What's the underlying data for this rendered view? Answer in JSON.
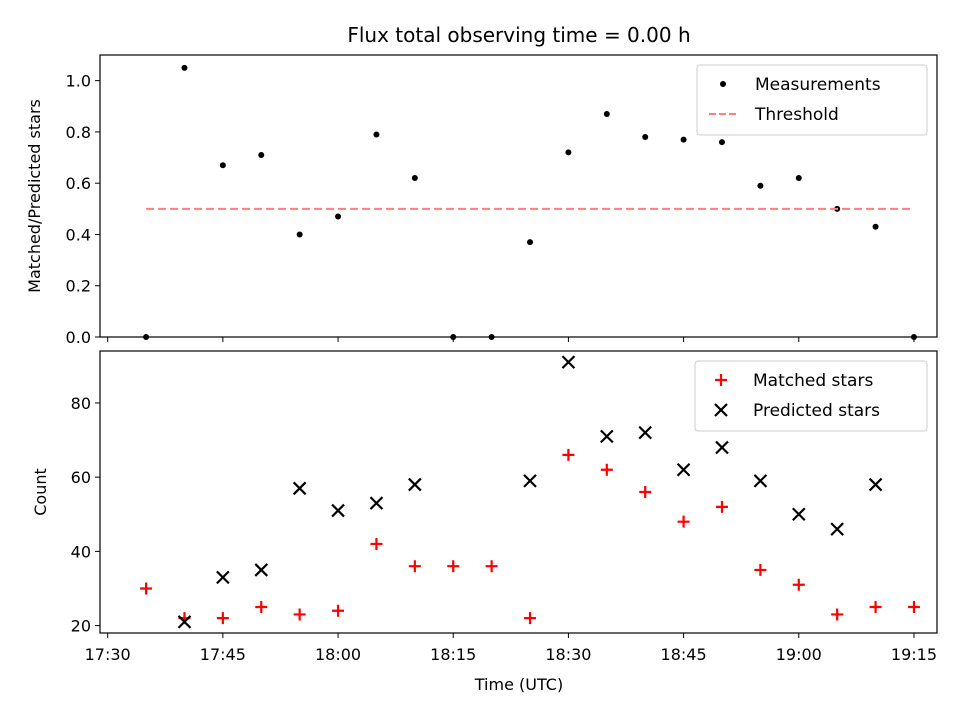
{
  "chart_data": [
    {
      "type": "scatter",
      "title": "Flux total observing time = 0.00 h",
      "xlabel": "",
      "ylabel": "Matched/Predicted stars",
      "ylim": [
        0,
        1.1
      ],
      "yticks": [
        "0.0",
        "0.2",
        "0.4",
        "0.6",
        "0.8",
        "1.0"
      ],
      "ytick_values": [
        0,
        0.2,
        0.4,
        0.6,
        0.8,
        1.0
      ],
      "legend_position": "top-right",
      "series": [
        {
          "name": "Measurements",
          "marker": "dot",
          "color": "#000000",
          "x": [
            "17:35",
            "17:40",
            "17:45",
            "17:50",
            "17:55",
            "18:00",
            "18:05",
            "18:10",
            "18:15",
            "18:20",
            "18:25",
            "18:30",
            "18:35",
            "18:40",
            "18:45",
            "18:50",
            "18:55",
            "19:00",
            "19:05",
            "19:10",
            "19:15"
          ],
          "values": [
            0.0,
            1.05,
            0.67,
            0.71,
            0.4,
            0.47,
            0.79,
            0.62,
            0.0,
            0.0,
            0.37,
            0.72,
            0.87,
            0.78,
            0.77,
            0.76,
            0.59,
            0.62,
            0.5,
            0.43,
            0.0
          ]
        },
        {
          "name": "Threshold",
          "marker": "dashed-line",
          "color": "#ff7f7f",
          "x": [
            "17:35",
            "19:15"
          ],
          "values": [
            0.5,
            0.5
          ]
        }
      ]
    },
    {
      "type": "scatter",
      "title": "",
      "xlabel": "Time (UTC)",
      "ylabel": "Count",
      "ylim": [
        18,
        94
      ],
      "yticks": [
        "20",
        "40",
        "60",
        "80"
      ],
      "ytick_values": [
        20,
        40,
        60,
        80
      ],
      "legend_position": "top-right",
      "series": [
        {
          "name": "Matched stars",
          "marker": "plus",
          "color": "#ff0000",
          "x": [
            "17:35",
            "17:40",
            "17:45",
            "17:50",
            "17:55",
            "18:00",
            "18:05",
            "18:10",
            "18:15",
            "18:20",
            "18:25",
            "18:30",
            "18:35",
            "18:40",
            "18:45",
            "18:50",
            "18:55",
            "19:00",
            "19:05",
            "19:10",
            "19:15"
          ],
          "values": [
            30,
            22,
            22,
            25,
            23,
            24,
            42,
            36,
            36,
            36,
            22,
            66,
            62,
            56,
            48,
            52,
            35,
            31,
            23,
            25,
            25
          ]
        },
        {
          "name": "Predicted stars",
          "marker": "x",
          "color": "#000000",
          "x": [
            "17:40",
            "17:45",
            "17:50",
            "17:55",
            "18:00",
            "18:05",
            "18:10",
            "18:25",
            "18:30",
            "18:35",
            "18:40",
            "18:45",
            "18:50",
            "18:55",
            "19:00",
            "19:05",
            "19:10"
          ],
          "values": [
            21,
            33,
            35,
            57,
            51,
            53,
            58,
            59,
            91,
            71,
            72,
            62,
            68,
            59,
            50,
            46,
            58
          ]
        }
      ]
    }
  ],
  "x_axis": {
    "range": [
      "17:29",
      "19:18"
    ],
    "ticks": [
      "17:30",
      "17:45",
      "18:00",
      "18:15",
      "18:30",
      "18:45",
      "19:00",
      "19:15"
    ]
  }
}
